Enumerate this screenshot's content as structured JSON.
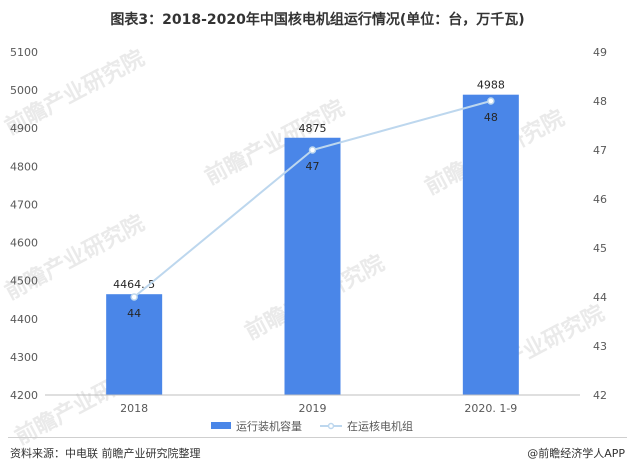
{
  "chart_data": {
    "type": "bar",
    "title": "图表3：2018-2020年中国核电机组运行情况(单位：台，万千瓦)",
    "categories": [
      "2018",
      "2019",
      "2020. 1-9"
    ],
    "series": [
      {
        "name": "运行装机容量",
        "kind": "bar",
        "axis": "left",
        "color": "#4a86e8",
        "values": [
          4464.5,
          4875,
          4988
        ],
        "labels": [
          "4464. 5",
          "4875",
          "4988"
        ]
      },
      {
        "name": "在运核电机组",
        "kind": "line",
        "axis": "right",
        "color": "#bdd7ee",
        "values": [
          44,
          47,
          48
        ],
        "labels": [
          "44",
          "47",
          "48"
        ]
      }
    ],
    "y_left": {
      "min": 4200,
      "max": 5100,
      "step": 100
    },
    "y_right": {
      "min": 42,
      "max": 49,
      "step": 1
    },
    "grid": false,
    "legend": "bottom"
  },
  "footer": {
    "source": "资料来源：中电联 前瞻产业研究院整理",
    "brand": "@前瞻经济学人APP"
  },
  "watermark_text": "前瞻产业研究院"
}
